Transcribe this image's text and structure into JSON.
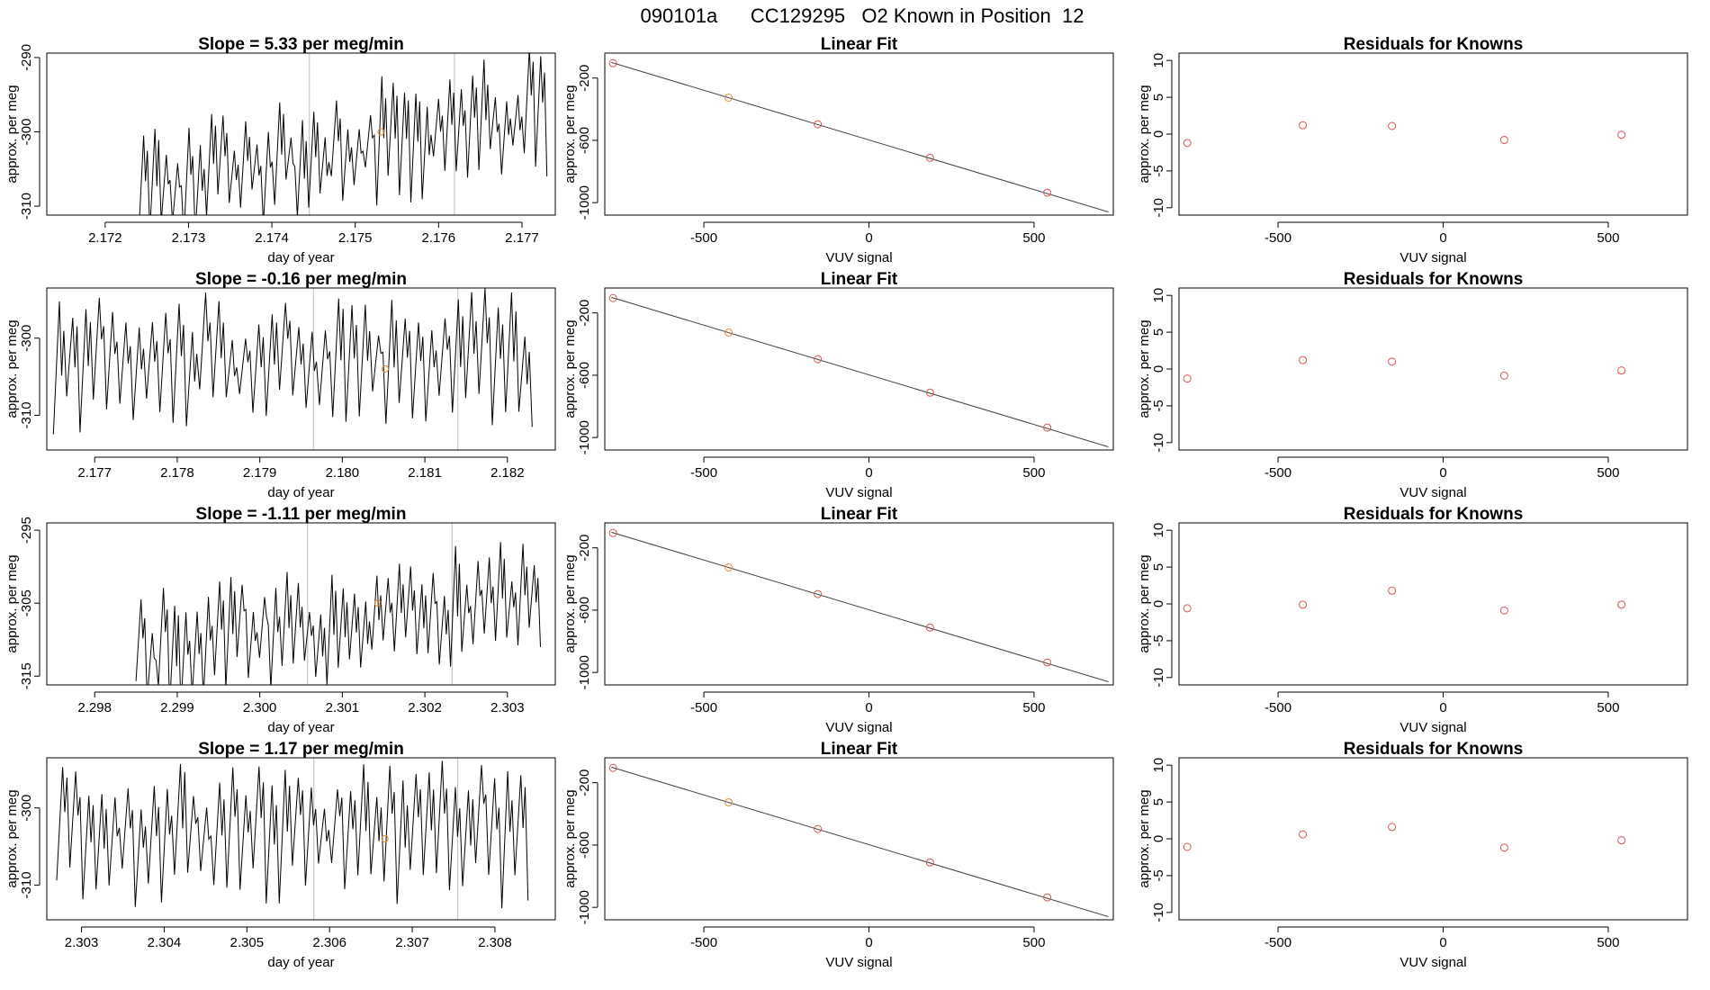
{
  "figure_title": "090101a      CC129295   O2 Known in Position  12",
  "chart_data": {
    "type": "multi-panel",
    "title": "090101a      CC129295   O2 Known in Position  12",
    "rows": [
      {
        "timeseries": {
          "type": "line",
          "title": "Slope =  5.33  per meg/min",
          "xlabel": "day of year",
          "ylabel": "approx. per meg",
          "xlim": [
            2.1713,
            2.1774
          ],
          "ylim": [
            -311.2,
            -289.4
          ],
          "xticks": [
            "2.172",
            "2.173",
            "2.174",
            "2.175",
            "2.176",
            "2.177"
          ],
          "yticks": [
            "-290",
            "-300",
            "-310"
          ],
          "vlines": [
            2.17445,
            2.17619
          ],
          "known_point": {
            "x": 2.17531,
            "y": -300.0
          },
          "trace_start": 2.1724,
          "trace_end": 2.1773,
          "trace_low": [
            -312.5,
            -304.0
          ],
          "trace_high": [
            -302.0,
            -292.0
          ]
        },
        "fit": {
          "type": "scatter",
          "title": "Linear Fit",
          "xlabel": "VUV signal",
          "ylabel": "approx. per meg",
          "xlim": [
            -800,
            740
          ],
          "ylim": [
            -1080,
            -40
          ],
          "xticks": [
            "-500",
            "0",
            "500"
          ],
          "yticks": [
            "-200",
            "-600",
            "-1000"
          ],
          "line": {
            "x": [
              -780,
              725
            ],
            "y": [
              -100,
              -1060
            ]
          },
          "points": [
            {
              "x": -775,
              "y": -105
            },
            {
              "x": -425,
              "y": -326
            },
            {
              "x": -155,
              "y": -497
            },
            {
              "x": 185,
              "y": -712
            },
            {
              "x": 540,
              "y": -936
            }
          ],
          "highlight_index": 1
        },
        "residuals": {
          "type": "scatter",
          "title": "Residuals for Knowns",
          "xlabel": "VUV signal",
          "ylabel": "approx. per meg",
          "xlim": [
            -800,
            740
          ],
          "ylim": [
            -11,
            11
          ],
          "xticks": [
            "-500",
            "0",
            "500"
          ],
          "yticks": [
            "10",
            "5",
            "0",
            "-5",
            "-10"
          ],
          "points": [
            {
              "x": -775,
              "y": -1.2
            },
            {
              "x": -425,
              "y": 1.2
            },
            {
              "x": -155,
              "y": 1.1
            },
            {
              "x": 185,
              "y": -0.8
            },
            {
              "x": 540,
              "y": -0.1
            }
          ]
        }
      },
      {
        "timeseries": {
          "type": "line",
          "title": "Slope =  -0.16  per meg/min",
          "xlabel": "day of year",
          "ylabel": "approx. per meg",
          "xlim": [
            2.17642,
            2.18258
          ],
          "ylim": [
            -314.5,
            -293.5
          ],
          "xticks": [
            "2.177",
            "2.178",
            "2.179",
            "2.180",
            "2.181",
            "2.182"
          ],
          "yticks": [
            "-300",
            "-310"
          ],
          "vlines": [
            2.17965,
            2.1814
          ],
          "known_point": {
            "x": 2.18052,
            "y": -304.0
          },
          "trace_start": 2.1765,
          "trace_end": 2.1823,
          "trace_low": [
            -309.5,
            -309.5
          ],
          "trace_high": [
            -297.0,
            -297.0
          ]
        },
        "fit": {
          "type": "scatter",
          "title": "Linear Fit",
          "xlabel": "VUV signal",
          "ylabel": "approx. per meg",
          "xlim": [
            -800,
            740
          ],
          "ylim": [
            -1080,
            -40
          ],
          "xticks": [
            "-500",
            "0",
            "500"
          ],
          "yticks": [
            "-200",
            "-600",
            "-1000"
          ],
          "line": {
            "x": [
              -780,
              725
            ],
            "y": [
              -100,
              -1060
            ]
          },
          "points": [
            {
              "x": -775,
              "y": -105
            },
            {
              "x": -425,
              "y": -326
            },
            {
              "x": -155,
              "y": -497
            },
            {
              "x": 185,
              "y": -712
            },
            {
              "x": 540,
              "y": -936
            }
          ],
          "highlight_index": 1
        },
        "residuals": {
          "type": "scatter",
          "title": "Residuals for Knowns",
          "xlabel": "VUV signal",
          "ylabel": "approx. per meg",
          "xlim": [
            -800,
            740
          ],
          "ylim": [
            -11,
            11
          ],
          "xticks": [
            "-500",
            "0",
            "500"
          ],
          "yticks": [
            "10",
            "5",
            "0",
            "-5",
            "-10"
          ],
          "points": [
            {
              "x": -775,
              "y": -1.3
            },
            {
              "x": -425,
              "y": 1.2
            },
            {
              "x": -155,
              "y": 1.0
            },
            {
              "x": 185,
              "y": -0.9
            },
            {
              "x": 540,
              "y": -0.2
            }
          ]
        }
      },
      {
        "timeseries": {
          "type": "line",
          "title": "Slope =  -1.11  per meg/min",
          "xlabel": "day of year",
          "ylabel": "approx. per meg",
          "xlim": [
            2.29742,
            2.30358
          ],
          "ylim": [
            -316.2,
            -294.0
          ],
          "xticks": [
            "2.298",
            "2.299",
            "2.300",
            "2.301",
            "2.302",
            "2.303"
          ],
          "yticks": [
            "-295",
            "-305",
            "-315"
          ],
          "vlines": [
            2.30058,
            2.30233
          ],
          "known_point": {
            "x": 2.30143,
            "y": -305.0
          },
          "trace_start": 2.2985,
          "trace_end": 2.3034,
          "trace_low": [
            -317.5,
            -309.0
          ],
          "trace_high": [
            -306.5,
            -299.0
          ]
        },
        "fit": {
          "type": "scatter",
          "title": "Linear Fit",
          "xlabel": "VUV signal",
          "ylabel": "approx. per meg",
          "xlim": [
            -800,
            740
          ],
          "ylim": [
            -1080,
            -40
          ],
          "xticks": [
            "-500",
            "0",
            "500"
          ],
          "yticks": [
            "-200",
            "-600",
            "-1000"
          ],
          "line": {
            "x": [
              -780,
              725
            ],
            "y": [
              -100,
              -1060
            ]
          },
          "points": [
            {
              "x": -775,
              "y": -105
            },
            {
              "x": -425,
              "y": -326
            },
            {
              "x": -155,
              "y": -497
            },
            {
              "x": 185,
              "y": -712
            },
            {
              "x": 540,
              "y": -936
            }
          ],
          "highlight_index": 1
        },
        "residuals": {
          "type": "scatter",
          "title": "Residuals for Knowns",
          "xlabel": "VUV signal",
          "ylabel": "approx. per meg",
          "xlim": [
            -800,
            740
          ],
          "ylim": [
            -11,
            11
          ],
          "xticks": [
            "-500",
            "0",
            "500"
          ],
          "yticks": [
            "10",
            "5",
            "0",
            "-5",
            "-10"
          ],
          "points": [
            {
              "x": -775,
              "y": -0.6
            },
            {
              "x": -425,
              "y": -0.1
            },
            {
              "x": -155,
              "y": 1.8
            },
            {
              "x": 185,
              "y": -0.9
            },
            {
              "x": 540,
              "y": -0.1
            }
          ]
        }
      },
      {
        "timeseries": {
          "type": "line",
          "title": "Slope =  1.17  per meg/min",
          "xlabel": "day of year",
          "ylabel": "approx. per meg",
          "xlim": [
            2.30258,
            2.30873
          ],
          "ylim": [
            -314.5,
            -293.5
          ],
          "xticks": [
            "2.303",
            "2.304",
            "2.305",
            "2.306",
            "2.307",
            "2.308"
          ],
          "yticks": [
            "-300",
            "-310"
          ],
          "vlines": [
            2.30581,
            2.30755
          ],
          "known_point": {
            "x": 2.30667,
            "y": -304.0
          },
          "trace_start": 2.3027,
          "trace_end": 2.3084,
          "trace_low": [
            -310.0,
            -310.0
          ],
          "trace_high": [
            -297.0,
            -297.0
          ]
        },
        "fit": {
          "type": "scatter",
          "title": "Linear Fit",
          "xlabel": "VUV signal",
          "ylabel": "approx. per meg",
          "xlim": [
            -800,
            740
          ],
          "ylim": [
            -1080,
            -40
          ],
          "xticks": [
            "-500",
            "0",
            "500"
          ],
          "yticks": [
            "-200",
            "-600",
            "-1000"
          ],
          "line": {
            "x": [
              -780,
              725
            ],
            "y": [
              -100,
              -1060
            ]
          },
          "points": [
            {
              "x": -775,
              "y": -105
            },
            {
              "x": -425,
              "y": -326
            },
            {
              "x": -155,
              "y": -497
            },
            {
              "x": 185,
              "y": -712
            },
            {
              "x": 540,
              "y": -936
            }
          ],
          "highlight_index": 1
        },
        "residuals": {
          "type": "scatter",
          "title": "Residuals for Knowns",
          "xlabel": "VUV signal",
          "ylabel": "approx. per meg",
          "xlim": [
            -800,
            740
          ],
          "ylim": [
            -11,
            11
          ],
          "xticks": [
            "-500",
            "0",
            "500"
          ],
          "yticks": [
            "10",
            "5",
            "0",
            "-5",
            "-10"
          ],
          "points": [
            {
              "x": -775,
              "y": -1.1
            },
            {
              "x": -425,
              "y": 0.6
            },
            {
              "x": -155,
              "y": 1.6
            },
            {
              "x": 185,
              "y": -1.2
            },
            {
              "x": 540,
              "y": -0.2
            }
          ]
        }
      }
    ]
  },
  "colors": {
    "trace": "#000000",
    "fit_line": "#404040",
    "point": "#d9534f",
    "highlight_point": "#e08a2a",
    "vline": "#bdbdbd",
    "frame": "#000000"
  }
}
